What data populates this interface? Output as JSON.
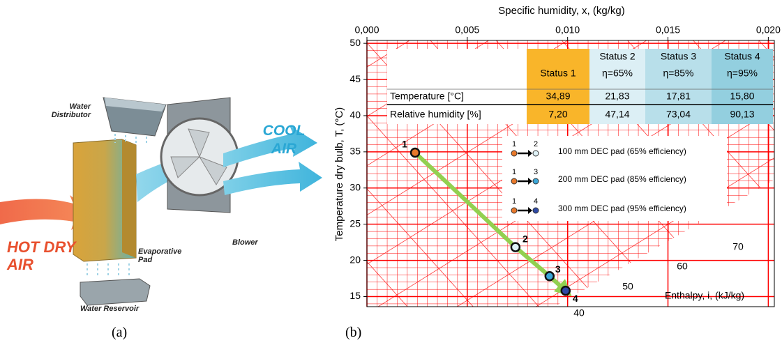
{
  "figure_a": {
    "caption": "(a)",
    "labels": {
      "water_distributor": "Water Distributor",
      "evaporative_pad": "Evaporative Pad",
      "blower": "Blower",
      "water_reservoir": "Water Reservoir",
      "hot_air": "HOT DRY AIR",
      "cool_air": "COOL AIR"
    }
  },
  "figure_b": {
    "caption": "(b)"
  },
  "chart_data": {
    "type": "scatter",
    "x_label": "Specific humidity, x, (kg/kg)",
    "y_label": "Temperature dry bulb, T, (°C)",
    "xlim": [
      0,
      0.0203
    ],
    "ylim": [
      13.6,
      50.4
    ],
    "xticks": [
      {
        "value": 0,
        "label": "0,000"
      },
      {
        "value": 0.005,
        "label": "0,005"
      },
      {
        "value": 0.01,
        "label": "0,010"
      },
      {
        "value": 0.015,
        "label": "0,015"
      },
      {
        "value": 0.02,
        "label": "0,020"
      }
    ],
    "yticks": [
      15,
      20,
      25,
      30,
      35,
      40,
      45,
      50
    ],
    "grid": true,
    "grid_color": "#ff0000",
    "x": [
      0.0024,
      0.0074,
      0.0091,
      0.0099
    ],
    "values": [
      34.89,
      21.83,
      17.81,
      15.8
    ],
    "point_labels": [
      "1",
      "2",
      "3",
      "4"
    ],
    "point_colors": [
      "#e8782a",
      "#dff2f7",
      "#3ba7d8",
      "#2f4aa6"
    ],
    "line_color": "#92d050",
    "legend": [
      {
        "from": "1",
        "to": "2",
        "text": "100 mm DEC pad (65% efficiency)"
      },
      {
        "from": "1",
        "to": "3",
        "text": "200 mm DEC pad (85% efficiency)"
      },
      {
        "from": "1",
        "to": "4",
        "text": "300 mm DEC pad (95% efficiency)"
      }
    ],
    "table": {
      "columns": [
        {
          "status": "Status 1",
          "color": "#f9b52a"
        },
        {
          "status": "Status 2",
          "efficiency": "η=65%",
          "color": "#dcEFF5"
        },
        {
          "status": "Status 3",
          "efficiency": "η=85%",
          "color": "#b8dfea"
        },
        {
          "status": "Status 4",
          "efficiency": "η=95%",
          "color": "#93cfdf"
        }
      ],
      "rows": [
        {
          "label": "Temperature [°C]",
          "values": [
            "34,89",
            "21,83",
            "17,81",
            "15,80"
          ]
        },
        {
          "label": "Relative humidity [%]",
          "values": [
            "7,20",
            "47,14",
            "73,04",
            "90,13"
          ]
        }
      ]
    },
    "enthalpy": {
      "label": "Enthalpy, i, (kJ/kg)",
      "values": [
        40,
        50,
        60,
        70
      ]
    }
  }
}
